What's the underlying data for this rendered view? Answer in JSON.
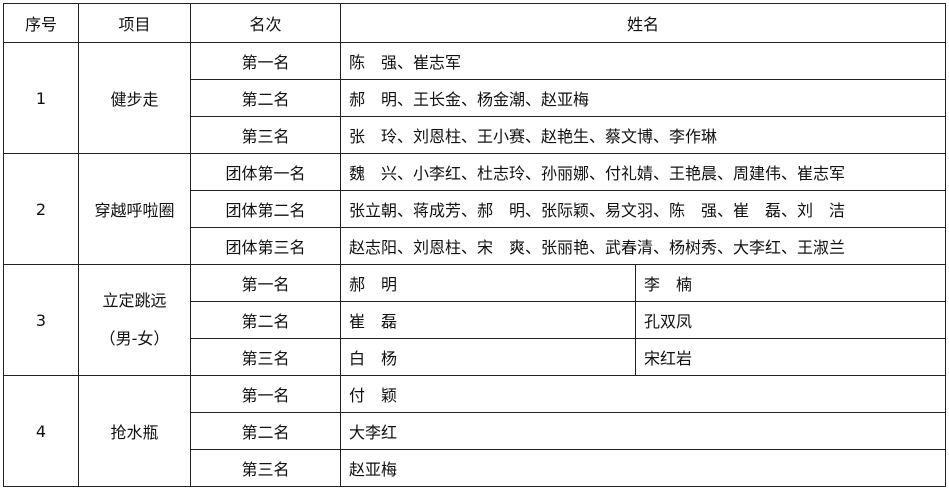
{
  "headers": [
    "序号",
    "项目",
    "名次",
    "姓名"
  ],
  "events": [
    {
      "no": "1",
      "name": "健步走",
      "rows": [
        {
          "rank": "第一名",
          "names": "陈　强、崔志军"
        },
        {
          "rank": "第二名",
          "names": "郝　明、王长金、杨金潮、赵亚梅"
        },
        {
          "rank": "第三名",
          "names": "张　玲、刘恩柱、王小赛、赵艳生、蔡文博、李作琳"
        }
      ]
    },
    {
      "no": "2",
      "name": "穿越呼啦圈",
      "rows": [
        {
          "rank": "团体第一名",
          "names": "魏　兴、小李红、杜志玲、孙丽娜、付礼婧、王艳晨、周建伟、崔志军"
        },
        {
          "rank": "团体第二名",
          "names": "张立朝、蒋成芳、郝　明、张际颖、易文羽、陈　强、崔　磊、刘　洁"
        },
        {
          "rank": "团体第三名",
          "names": "赵志阳、刘恩柱、宋　爽、张丽艳、武春清、杨树秀、大李红、王淑兰"
        }
      ]
    },
    {
      "no": "3",
      "name": "立定跳远",
      "name2": "（男-女）",
      "rows": [
        {
          "rank": "第一名",
          "male": "郝　明",
          "female": "李　楠"
        },
        {
          "rank": "第二名",
          "male": "崔　磊",
          "female": "孔双凤"
        },
        {
          "rank": "第三名",
          "male": "白　杨",
          "female": "宋红岩"
        }
      ]
    },
    {
      "no": "4",
      "name": "抢水瓶",
      "rows": [
        {
          "rank": "第一名",
          "names": "付　颖"
        },
        {
          "rank": "第二名",
          "names": "大李红"
        },
        {
          "rank": "第三名",
          "names": "赵亚梅"
        }
      ]
    }
  ]
}
